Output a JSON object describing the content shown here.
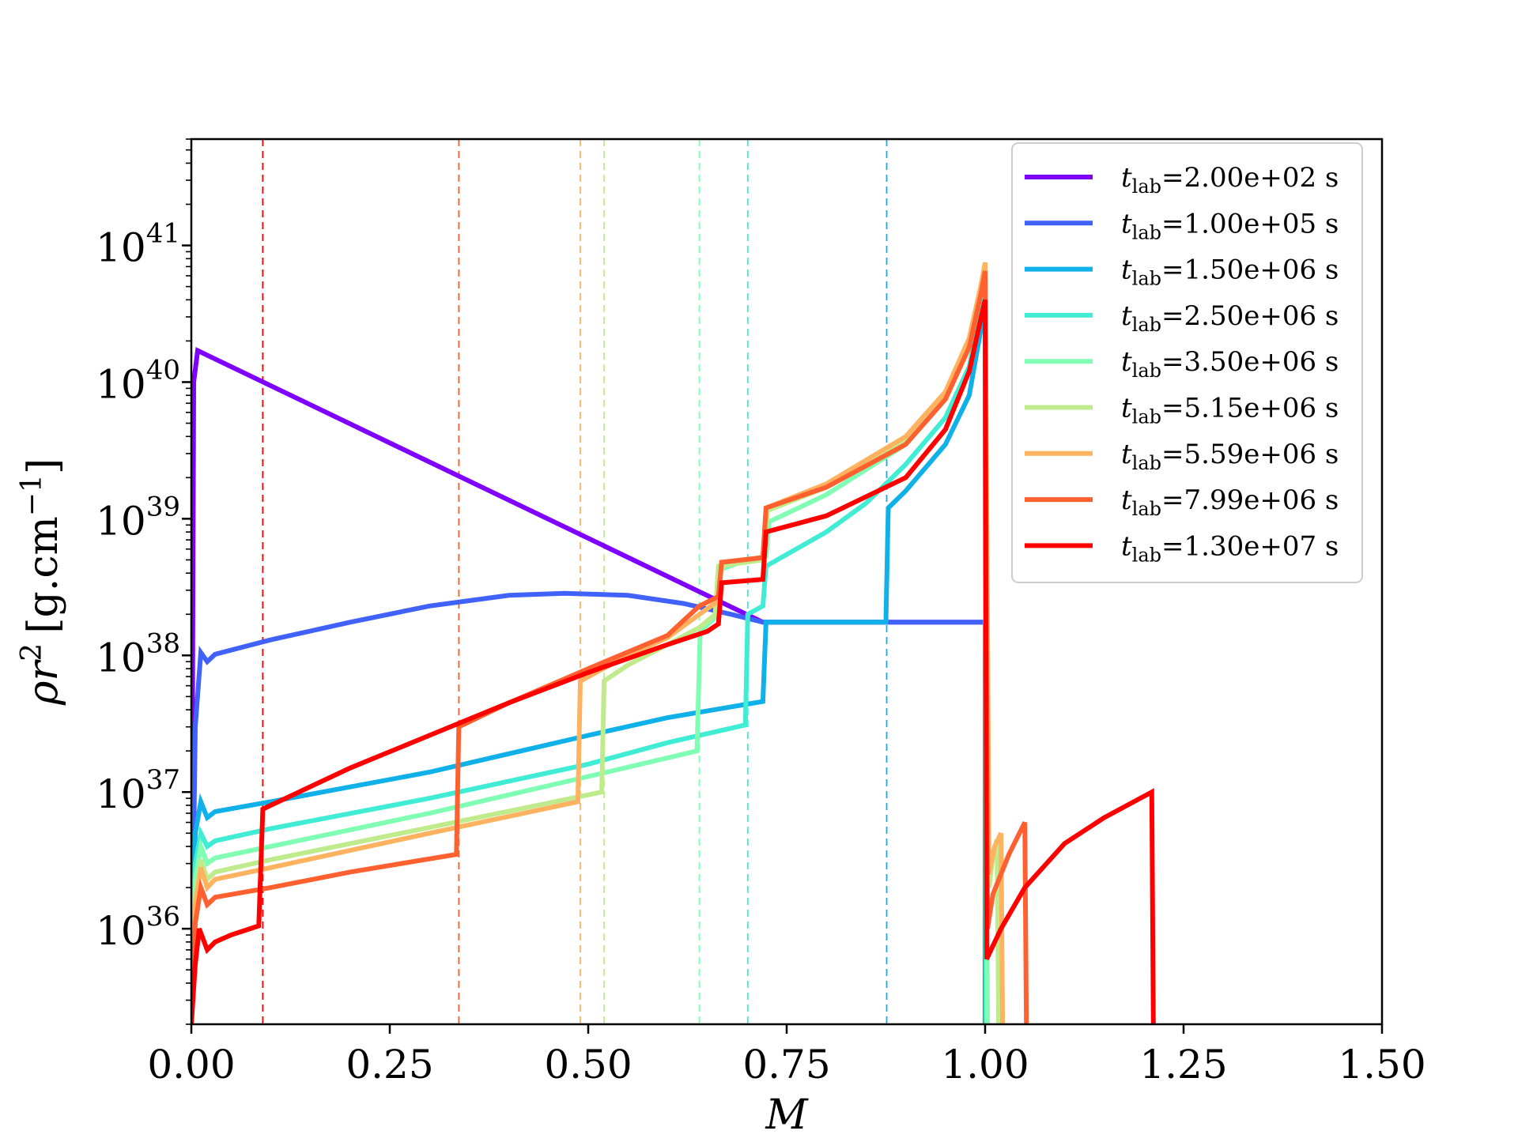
{
  "chart_data": {
    "type": "line",
    "xlabel": "M",
    "ylabel": "ρr² [g.cm⁻¹]",
    "ylabel_parts": {
      "rho": "ρ",
      "r": "r",
      "exp2": "2",
      "units_open": "[g.cm",
      "units_exp": "−1",
      "units_close": "]"
    },
    "xlim": [
      0.0,
      1.5
    ],
    "ylim": [
      2e+35,
      6e+41
    ],
    "yscale": "log",
    "grid": false,
    "legend_position": "top-right",
    "x_ticks": [
      "0.00",
      "0.25",
      "0.50",
      "0.75",
      "1.00",
      "1.25",
      "1.50"
    ],
    "y_ticks": [
      {
        "base": "10",
        "exp": "36",
        "value": 1e+36
      },
      {
        "base": "10",
        "exp": "37",
        "value": 1e+37
      },
      {
        "base": "10",
        "exp": "38",
        "value": 1e+38
      },
      {
        "base": "10",
        "exp": "39",
        "value": 1e+39
      },
      {
        "base": "10",
        "exp": "40",
        "value": 1e+40
      },
      {
        "base": "10",
        "exp": "41",
        "value": 1e+41
      }
    ],
    "series": [
      {
        "name": "t_lab=2.00e+02 s",
        "label_t": "t",
        "label_sub": "lab",
        "label_rest": "=2.00e+02 s",
        "color": "#8000ff",
        "shock": null,
        "points": [
          [
            0.0,
            2e+35
          ],
          [
            0.003,
            1e+40
          ],
          [
            0.008,
            1.7e+40
          ],
          [
            0.72,
            1.75e+38
          ],
          [
            1.0,
            1.75e+38
          ],
          [
            1.0,
            2e+35
          ]
        ]
      },
      {
        "name": "t_lab=1.00e+05 s",
        "label_t": "t",
        "label_sub": "lab",
        "label_rest": "=1.00e+05 s",
        "color": "#4062fa",
        "shock": null,
        "points": [
          [
            0.0,
            2e+35
          ],
          [
            0.005,
            3e+37
          ],
          [
            0.012,
            1.05e+38
          ],
          [
            0.02,
            9e+37
          ],
          [
            0.03,
            1.02e+38
          ],
          [
            0.1,
            1.3e+38
          ],
          [
            0.2,
            1.75e+38
          ],
          [
            0.3,
            2.3e+38
          ],
          [
            0.4,
            2.75e+38
          ],
          [
            0.47,
            2.85e+38
          ],
          [
            0.55,
            2.75e+38
          ],
          [
            0.62,
            2.4e+38
          ],
          [
            0.68,
            2e+38
          ],
          [
            0.72,
            1.75e+38
          ],
          [
            1.0,
            1.75e+38
          ],
          [
            1.0,
            2e+35
          ]
        ]
      },
      {
        "name": "t_lab=1.50e+06 s",
        "label_t": "t",
        "label_sub": "lab",
        "label_rest": "=1.50e+06 s",
        "color": "#10b0e8",
        "shock": 0.876,
        "points": [
          [
            0.0,
            2e+35
          ],
          [
            0.005,
            5e+36
          ],
          [
            0.012,
            8.5e+36
          ],
          [
            0.02,
            6.5e+36
          ],
          [
            0.03,
            7.2e+36
          ],
          [
            0.1,
            8.5e+36
          ],
          [
            0.3,
            1.4e+37
          ],
          [
            0.5,
            2.6e+37
          ],
          [
            0.6,
            3.5e+37
          ],
          [
            0.7,
            4.4e+37
          ],
          [
            0.72,
            4.6e+37
          ],
          [
            0.724,
            1.75e+38
          ],
          [
            0.875,
            1.75e+38
          ],
          [
            0.878,
            1.2e+39
          ],
          [
            0.9,
            1.6e+39
          ],
          [
            0.95,
            3.5e+39
          ],
          [
            0.98,
            8e+39
          ],
          [
            0.995,
            2.5e+40
          ],
          [
            1.0,
            5e+40
          ],
          [
            1.001,
            2e+35
          ]
        ]
      },
      {
        "name": "t_lab=2.50e+06 s",
        "label_t": "t",
        "label_sub": "lab",
        "label_rest": "=2.50e+06 s",
        "color": "#40ecd4",
        "shock": 0.701,
        "points": [
          [
            0.0,
            2e+35
          ],
          [
            0.005,
            3e+36
          ],
          [
            0.012,
            5e+36
          ],
          [
            0.02,
            4e+36
          ],
          [
            0.03,
            4.4e+36
          ],
          [
            0.1,
            5.4e+36
          ],
          [
            0.3,
            9e+36
          ],
          [
            0.5,
            1.6e+37
          ],
          [
            0.6,
            2.3e+37
          ],
          [
            0.698,
            3.1e+37
          ],
          [
            0.701,
            2e+38
          ],
          [
            0.72,
            2.3e+38
          ],
          [
            0.724,
            4.5e+38
          ],
          [
            0.8,
            8e+38
          ],
          [
            0.85,
            1.3e+39
          ],
          [
            0.9,
            2.5e+39
          ],
          [
            0.95,
            5.5e+39
          ],
          [
            0.98,
            1.3e+40
          ],
          [
            0.995,
            3.5e+40
          ],
          [
            1.0,
            5.5e+40
          ],
          [
            1.001,
            2e+35
          ]
        ]
      },
      {
        "name": "t_lab=3.50e+06 s",
        "label_t": "t",
        "label_sub": "lab",
        "label_rest": "=3.50e+06 s",
        "color": "#80ffb4",
        "shock": 0.64,
        "points": [
          [
            0.0,
            2e+35
          ],
          [
            0.005,
            2.3e+36
          ],
          [
            0.012,
            4e+36
          ],
          [
            0.02,
            3e+36
          ],
          [
            0.03,
            3.3e+36
          ],
          [
            0.1,
            4e+36
          ],
          [
            0.3,
            7e+36
          ],
          [
            0.5,
            1.3e+37
          ],
          [
            0.637,
            2e+37
          ],
          [
            0.641,
            1.5e+38
          ],
          [
            0.66,
            1.9e+38
          ],
          [
            0.664,
            4.2e+38
          ],
          [
            0.7,
            5e+38
          ],
          [
            0.724,
            5.3e+38
          ],
          [
            0.728,
            9.5e+38
          ],
          [
            0.8,
            1.5e+39
          ],
          [
            0.9,
            3.5e+39
          ],
          [
            0.95,
            7.5e+39
          ],
          [
            0.98,
            1.8e+40
          ],
          [
            0.995,
            4.5e+40
          ],
          [
            1.0,
            7e+40
          ],
          [
            1.003,
            2e+35
          ]
        ]
      },
      {
        "name": "t_lab=5.15e+06 s",
        "label_t": "t",
        "label_sub": "lab",
        "label_rest": "=5.15e+06 s",
        "color": "#c0eb8d",
        "shock": 0.52,
        "points": [
          [
            0.0,
            2e+35
          ],
          [
            0.005,
            1.7e+36
          ],
          [
            0.012,
            3.2e+36
          ],
          [
            0.02,
            2.3e+36
          ],
          [
            0.03,
            2.6e+36
          ],
          [
            0.1,
            3.2e+36
          ],
          [
            0.3,
            5.5e+36
          ],
          [
            0.517,
            1e+37
          ],
          [
            0.52,
            6.5e+37
          ],
          [
            0.55,
            8.5e+37
          ],
          [
            0.6,
            1.2e+38
          ],
          [
            0.64,
            1.6e+38
          ],
          [
            0.66,
            2e+38
          ],
          [
            0.664,
            4.5e+38
          ],
          [
            0.72,
            5e+38
          ],
          [
            0.726,
            1.15e+39
          ],
          [
            0.8,
            1.7e+39
          ],
          [
            0.9,
            3.8e+39
          ],
          [
            0.95,
            8e+39
          ],
          [
            0.98,
            2e+40
          ],
          [
            0.995,
            5e+40
          ],
          [
            1.0,
            7.5e+40
          ],
          [
            1.005,
            2e+36
          ],
          [
            1.01,
            3.5e+36
          ],
          [
            1.015,
            4.5e+36
          ],
          [
            1.017,
            2e+35
          ]
        ]
      },
      {
        "name": "t_lab=5.59e+06 s",
        "label_t": "t",
        "label_sub": "lab",
        "label_rest": "=5.59e+06 s",
        "color": "#ffb360",
        "shock": 0.49,
        "points": [
          [
            0.0,
            2e+35
          ],
          [
            0.005,
            1.5e+36
          ],
          [
            0.012,
            2.8e+36
          ],
          [
            0.02,
            2e+36
          ],
          [
            0.03,
            2.3e+36
          ],
          [
            0.1,
            2.8e+36
          ],
          [
            0.3,
            5e+36
          ],
          [
            0.487,
            8.5e+36
          ],
          [
            0.49,
            6.5e+37
          ],
          [
            0.55,
            1e+38
          ],
          [
            0.6,
            1.35e+38
          ],
          [
            0.65,
            2.2e+38
          ],
          [
            0.664,
            2.5e+38
          ],
          [
            0.668,
            4.8e+38
          ],
          [
            0.72,
            5.2e+38
          ],
          [
            0.724,
            1.2e+39
          ],
          [
            0.8,
            1.8e+39
          ],
          [
            0.9,
            4e+39
          ],
          [
            0.95,
            8.5e+39
          ],
          [
            0.98,
            2.1e+40
          ],
          [
            0.995,
            5.2e+40
          ],
          [
            1.0,
            7.5e+40
          ],
          [
            1.005,
            2.5e+36
          ],
          [
            1.012,
            4e+36
          ],
          [
            1.02,
            5e+36
          ],
          [
            1.022,
            2e+35
          ]
        ]
      },
      {
        "name": "t_lab=7.99e+06 s",
        "label_t": "t",
        "label_sub": "lab",
        "label_rest": "=7.99e+06 s",
        "color": "#ff6030",
        "shock": 0.337,
        "points": [
          [
            0.0,
            2e+35
          ],
          [
            0.005,
            1.1e+36
          ],
          [
            0.012,
            2e+36
          ],
          [
            0.02,
            1.5e+36
          ],
          [
            0.03,
            1.7e+36
          ],
          [
            0.1,
            2e+36
          ],
          [
            0.2,
            2.6e+36
          ],
          [
            0.334,
            3.5e+36
          ],
          [
            0.337,
            3e+37
          ],
          [
            0.4,
            4.5e+37
          ],
          [
            0.5,
            8e+37
          ],
          [
            0.6,
            1.4e+38
          ],
          [
            0.62,
            1.8e+38
          ],
          [
            0.64,
            2.3e+38
          ],
          [
            0.664,
            2.7e+38
          ],
          [
            0.668,
            4.8e+38
          ],
          [
            0.72,
            5.2e+38
          ],
          [
            0.724,
            1.2e+39
          ],
          [
            0.8,
            1.7e+39
          ],
          [
            0.9,
            3.5e+39
          ],
          [
            0.95,
            7.5e+39
          ],
          [
            0.98,
            1.8e+40
          ],
          [
            0.995,
            4.5e+40
          ],
          [
            1.0,
            6.5e+40
          ],
          [
            1.003,
            1e+36
          ],
          [
            1.01,
            1.8e+36
          ],
          [
            1.03,
            3.5e+36
          ],
          [
            1.05,
            6e+36
          ],
          [
            1.052,
            2e+35
          ]
        ]
      },
      {
        "name": "t_lab=1.30e+07 s",
        "label_t": "t",
        "label_sub": "lab",
        "label_rest": "=1.30e+07 s",
        "color": "#ff0000",
        "shock": 0.09,
        "points": [
          [
            0.0,
            2e+35
          ],
          [
            0.005,
            5.5e+35
          ],
          [
            0.01,
            1e+36
          ],
          [
            0.02,
            7e+35
          ],
          [
            0.03,
            8e+35
          ],
          [
            0.05,
            9e+35
          ],
          [
            0.085,
            1.05e+36
          ],
          [
            0.09,
            7.5e+36
          ],
          [
            0.1,
            8e+36
          ],
          [
            0.2,
            1.5e+37
          ],
          [
            0.3,
            2.6e+37
          ],
          [
            0.4,
            4.5e+37
          ],
          [
            0.5,
            7.5e+37
          ],
          [
            0.6,
            1.2e+38
          ],
          [
            0.65,
            1.5e+38
          ],
          [
            0.664,
            1.7e+38
          ],
          [
            0.668,
            3.4e+38
          ],
          [
            0.72,
            3.6e+38
          ],
          [
            0.724,
            8e+38
          ],
          [
            0.8,
            1.05e+39
          ],
          [
            0.9,
            2e+39
          ],
          [
            0.95,
            4.5e+39
          ],
          [
            0.98,
            1.2e+40
          ],
          [
            0.995,
            3e+40
          ],
          [
            1.0,
            4e+40
          ],
          [
            1.002,
            6e+35
          ],
          [
            1.02,
            1e+36
          ],
          [
            1.05,
            2e+36
          ],
          [
            1.1,
            4.2e+36
          ],
          [
            1.15,
            6.5e+36
          ],
          [
            1.21,
            1e+37
          ],
          [
            1.212,
            2e+35
          ]
        ]
      }
    ]
  }
}
